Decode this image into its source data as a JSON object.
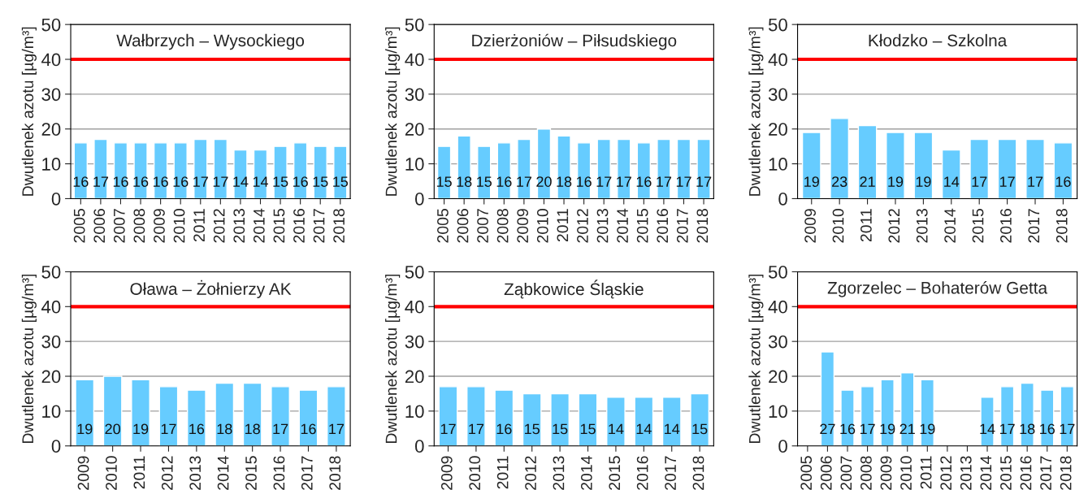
{
  "chart_data": [
    {
      "type": "bar",
      "title": "Wałbrzych – Wysockiego",
      "ylabel": "Dwutlenek azotu [µg/m³]",
      "categories": [
        "2005",
        "2006",
        "2007",
        "2008",
        "2009",
        "2010",
        "2011",
        "2012",
        "2013",
        "2014",
        "2015",
        "2016",
        "2017",
        "2018"
      ],
      "values": [
        16,
        17,
        16,
        16,
        16,
        16,
        17,
        17,
        14,
        14,
        15,
        16,
        15,
        15
      ],
      "color": "#66ccff",
      "data_labels": true,
      "ylim": [
        0,
        50
      ],
      "yticks": [
        0,
        10,
        20,
        30,
        40,
        50
      ],
      "grid": "y",
      "ref_lines": [
        {
          "axis": "y",
          "value": 40,
          "color": "#ff0000"
        }
      ]
    },
    {
      "type": "bar",
      "title": "Dzierżoniów – Piłsudskiego",
      "ylabel": "Dwutlenek azotu [µg/m³]",
      "categories": [
        "2005",
        "2006",
        "2007",
        "2008",
        "2009",
        "2010",
        "2011",
        "2012",
        "2013",
        "2014",
        "2015",
        "2016",
        "2017",
        "2018"
      ],
      "values": [
        15,
        18,
        15,
        16,
        17,
        20,
        18,
        16,
        17,
        17,
        16,
        17,
        17,
        17
      ],
      "color": "#66ccff",
      "data_labels": true,
      "ylim": [
        0,
        50
      ],
      "yticks": [
        0,
        10,
        20,
        30,
        40,
        50
      ],
      "grid": "y",
      "ref_lines": [
        {
          "axis": "y",
          "value": 40,
          "color": "#ff0000"
        }
      ]
    },
    {
      "type": "bar",
      "title": "Kłodzko – Szkolna",
      "ylabel": "Dwutlenek azotu [µg/m³]",
      "categories": [
        "2009",
        "2010",
        "2011",
        "2012",
        "2013",
        "2014",
        "2015",
        "2016",
        "2017",
        "2018"
      ],
      "values": [
        19,
        23,
        21,
        19,
        19,
        14,
        17,
        17,
        17,
        16
      ],
      "color": "#66ccff",
      "data_labels": true,
      "ylim": [
        0,
        50
      ],
      "yticks": [
        0,
        10,
        20,
        30,
        40,
        50
      ],
      "grid": "y",
      "ref_lines": [
        {
          "axis": "y",
          "value": 40,
          "color": "#ff0000"
        }
      ]
    },
    {
      "type": "bar",
      "title": "Oława – Żołnierzy AK",
      "ylabel": "Dwutlenek azotu [µg/m³]",
      "categories": [
        "2009",
        "2010",
        "2011",
        "2012",
        "2013",
        "2014",
        "2015",
        "2016",
        "2017",
        "2018"
      ],
      "values": [
        19,
        20,
        19,
        17,
        16,
        18,
        18,
        17,
        16,
        17
      ],
      "color": "#66ccff",
      "data_labels": true,
      "ylim": [
        0,
        50
      ],
      "yticks": [
        0,
        10,
        20,
        30,
        40,
        50
      ],
      "grid": "y",
      "ref_lines": [
        {
          "axis": "y",
          "value": 40,
          "color": "#ff0000"
        }
      ]
    },
    {
      "type": "bar",
      "title": "Ząbkowice Śląskie",
      "ylabel": "Dwutlenek azotu [µg/m³]",
      "categories": [
        "2009",
        "2010",
        "2011",
        "2012",
        "2013",
        "2014",
        "2015",
        "2016",
        "2017",
        "2018"
      ],
      "values": [
        17,
        17,
        16,
        15,
        15,
        15,
        14,
        14,
        14,
        15
      ],
      "color": "#66ccff",
      "data_labels": true,
      "ylim": [
        0,
        50
      ],
      "yticks": [
        0,
        10,
        20,
        30,
        40,
        50
      ],
      "grid": "y",
      "ref_lines": [
        {
          "axis": "y",
          "value": 40,
          "color": "#ff0000"
        }
      ]
    },
    {
      "type": "bar",
      "title": "Zgorzelec – Bohaterów Getta",
      "ylabel": "Dwutlenek azotu [µg/m³]",
      "categories": [
        "2005",
        "2006",
        "2007",
        "2008",
        "2009",
        "2010",
        "2011",
        "2012",
        "2013",
        "2014",
        "2015",
        "2016",
        "2017",
        "2018"
      ],
      "values": [
        null,
        27,
        16,
        17,
        19,
        21,
        19,
        null,
        null,
        14,
        17,
        18,
        16,
        17
      ],
      "color": "#66ccff",
      "data_labels": true,
      "ylim": [
        0,
        50
      ],
      "yticks": [
        0,
        10,
        20,
        30,
        40,
        50
      ],
      "grid": "y",
      "ref_lines": [
        {
          "axis": "y",
          "value": 40,
          "color": "#ff0000"
        }
      ]
    }
  ]
}
